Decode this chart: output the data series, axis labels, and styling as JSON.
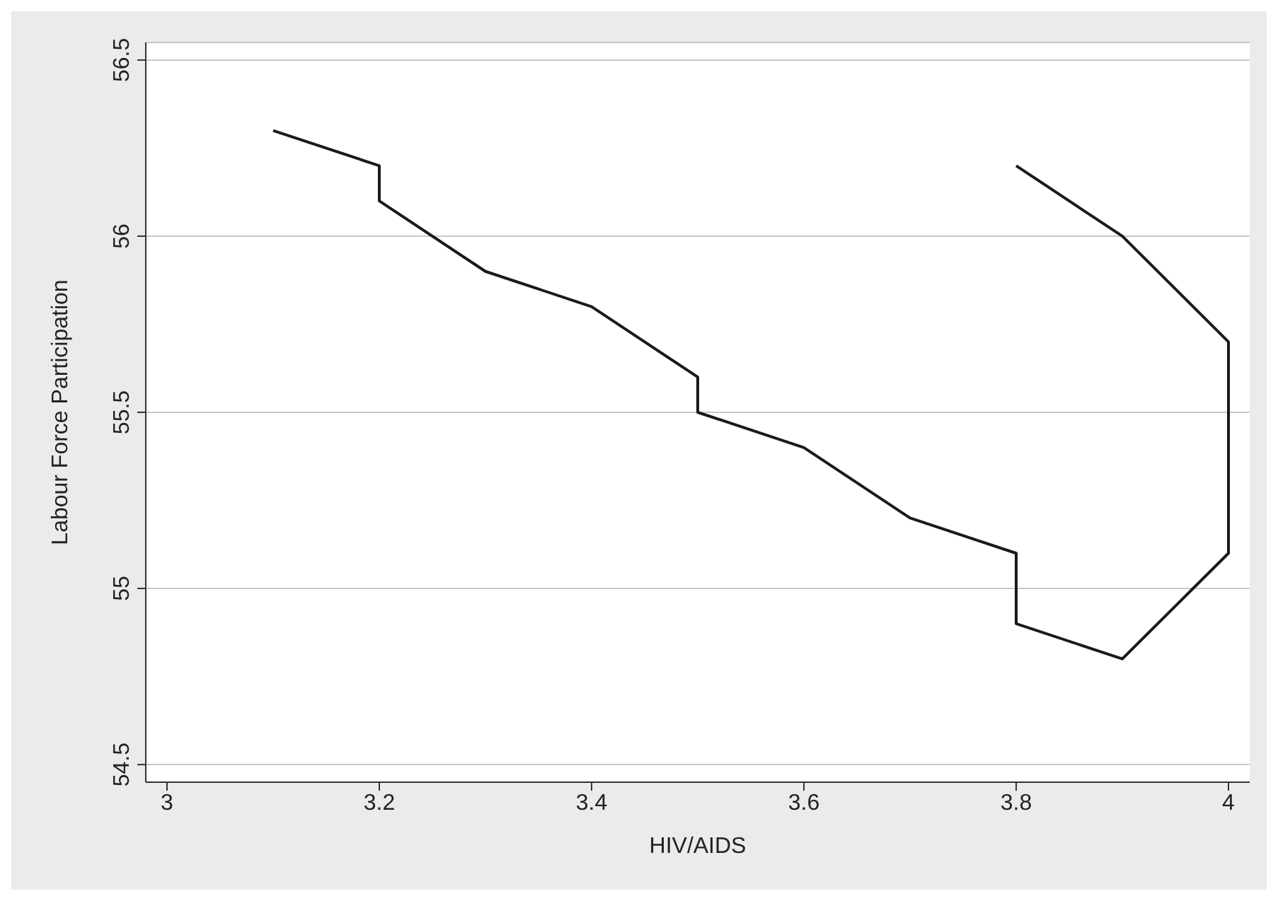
{
  "chart_data": {
    "type": "line",
    "xlabel": "HIV/AIDS",
    "ylabel": "Labour Force Participation",
    "xlim": [
      2.98,
      4.02
    ],
    "xticks": [
      3,
      3.2,
      3.4,
      3.6,
      3.8,
      4
    ],
    "ylim": [
      54.45,
      56.55
    ],
    "yticks": [
      54.5,
      55,
      55.5,
      56,
      56.5
    ],
    "grid": "y",
    "legend": false,
    "marker": "none",
    "line_style": "solid",
    "series": [
      {
        "color": "#1a1a1a",
        "x": [
          3.1,
          3.2,
          3.2,
          3.3,
          3.4,
          3.5,
          3.5,
          3.6,
          3.7,
          3.8,
          3.8,
          3.9,
          4.0,
          4.0,
          3.9,
          3.8
        ],
        "values": [
          56.3,
          56.2,
          56.1,
          55.9,
          55.8,
          55.6,
          55.5,
          55.4,
          55.2,
          55.1,
          54.9,
          54.8,
          55.1,
          55.7,
          56.0,
          56.2
        ]
      }
    ]
  }
}
